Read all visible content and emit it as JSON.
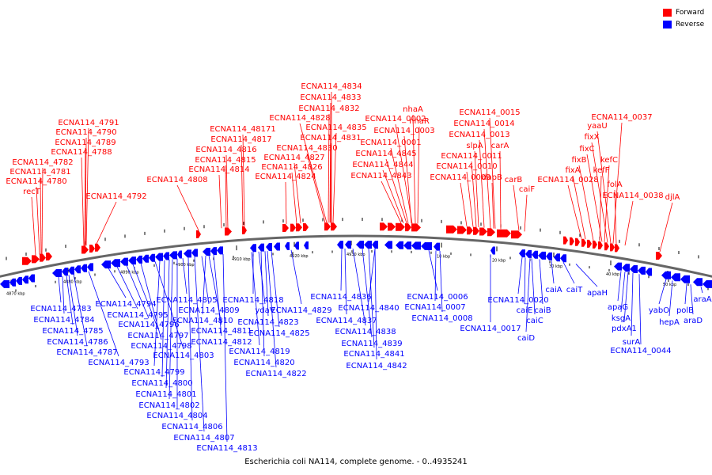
{
  "legend": [
    {
      "label": "Forward",
      "color": "#ff0000"
    },
    {
      "label": "Reverse",
      "color": "#0000ff"
    }
  ],
  "caption": "Escherichia coli NA114, complete genome. - 0..4935241",
  "colors": {
    "forward": "#ff0000",
    "reverse": "#0000ff",
    "backbone": "#666666"
  },
  "ticks": [
    "4870 kbp",
    "4880 kbp",
    "4890 kbp",
    "4900 kbp",
    "4910 kbp",
    "4920 kbp",
    "4930 kbp",
    "10 kbp",
    "20 kbp",
    "30 kbp",
    "40 kbp",
    "50 kbp"
  ],
  "forward_labels": [
    "ECNA114_4834",
    "ECNA114_4833",
    "ECNA114_4832",
    "ECNA114_4828",
    "ECNA114_4835",
    "ECNA114_4831",
    "ECNA114_4830",
    "ECNA114_4827",
    "ECNA114_4826",
    "ECNA114_4824",
    "ECNA114_48171",
    "ECNA114_4817",
    "ECNA114_4816",
    "ECNA114_4815",
    "ECNA114_4814",
    "ECNA114_4808",
    "ECNA114_4791",
    "ECNA114_4790",
    "ECNA114_4789",
    "ECNA114_4788",
    "ECNA114_4782",
    "ECNA114_4781",
    "ECNA114_4780",
    "recT",
    "ECNA114_4792",
    "nhaR",
    "nhaA",
    "ECNA114_0002",
    "ECNA114_0003",
    "ECNA114_0001",
    "ECNA114_4845",
    "ECNA114_4844",
    "ECNA114_4843",
    "ECNA114_0015",
    "ECNA114_0014",
    "ECNA114_0013",
    "slpA",
    "carA",
    "ECNA114_0011",
    "ECNA114_0010",
    "ECNA114_0009",
    "dapB",
    "carB",
    "caiF",
    "ECNA114_0037",
    "yaaU",
    "fixX",
    "fixC",
    "fixB",
    "fixA",
    "kefC",
    "kefF",
    "ECNA114_0028",
    "folA",
    "ECNA114_0038",
    "djlA"
  ],
  "reverse_labels": [
    "ECNA114_4783",
    "ECNA114_4784",
    "ECNA114_4785",
    "ECNA114_4786",
    "ECNA114_4787",
    "ECNA114_4793",
    "ECNA114_4794",
    "ECNA114_4795",
    "ECNA114_4796",
    "ECNA114_4797",
    "ECNA114_4798",
    "ECNA114_4803",
    "ECNA114_4799",
    "ECNA114_4800",
    "ECNA114_4801",
    "ECNA114_4802",
    "ECNA114_4804",
    "ECNA114_4806",
    "ECNA114_4807",
    "ECNA114_4813",
    "ECNA114_4805",
    "ECNA114_4809",
    "ECNA114_4810",
    "ECNA114_4811",
    "ECNA114_4812",
    "ECNA114_4818",
    "ydaV",
    "ECNA114_4823",
    "ECNA114_4825",
    "ECNA114_4819",
    "ECNA114_4820",
    "ECNA114_4822",
    "ECNA114_4829",
    "ECNA114_4836",
    "ECNA114_4837",
    "ECNA114_4838",
    "ECNA114_4839",
    "ECNA114_4840",
    "ECNA114_4841",
    "ECNA114_4842",
    "ECNA114_0006",
    "ECNA114_0007",
    "ECNA114_0008",
    "ECNA114_0020",
    "caiE",
    "caiB",
    "caiC",
    "caiD",
    "ECNA114_0017",
    "caiA",
    "caiT",
    "apaH",
    "apaG",
    "ksgA",
    "pdxA1",
    "surA",
    "ECNA114_0044",
    "yabO",
    "hepA",
    "polB",
    "araD",
    "araA"
  ]
}
